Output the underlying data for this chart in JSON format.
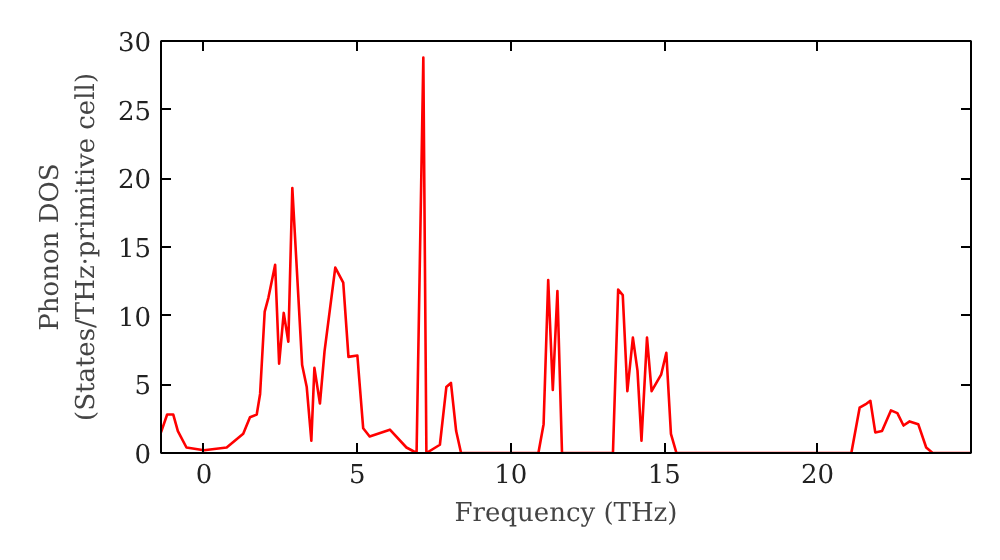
{
  "chart_data": {
    "type": "line",
    "xlabel": "Frequency (THz)",
    "ylabel": "Phonon DOS\n(States/THz·primitive cell)",
    "xlim": [
      -1.4,
      25
    ],
    "ylim": [
      0,
      30
    ],
    "xticks": [
      0,
      5,
      10,
      15,
      20
    ],
    "yticks": [
      0,
      5,
      10,
      15,
      20,
      25,
      30
    ],
    "grid": false,
    "series": [
      {
        "color": "#ff0000",
        "x": [
          -1.4,
          -1.2,
          -1.0,
          -0.85,
          -0.57,
          0,
          0.74,
          1.28,
          1.5,
          1.72,
          1.83,
          1.98,
          2.1,
          2.32,
          2.45,
          2.6,
          2.75,
          2.88,
          3.2,
          3.35,
          3.5,
          3.6,
          3.78,
          3.93,
          4.28,
          4.54,
          4.71,
          5.0,
          5.19,
          5.4,
          6.06,
          6.6,
          6.93,
          7.15,
          7.25,
          7.69,
          7.9,
          8.05,
          8.22,
          8.38,
          10.9,
          11.07,
          11.22,
          11.37,
          11.52,
          11.67,
          13.33,
          13.5,
          13.65,
          13.8,
          13.98,
          14.13,
          14.26,
          14.44,
          14.59,
          14.9,
          15.07,
          15.22,
          15.4,
          21.1,
          21.37,
          21.6,
          21.72,
          21.88,
          22.1,
          22.39,
          22.6,
          22.8,
          23.0,
          23.28,
          23.54,
          23.75,
          25
        ],
        "values": [
          1.5,
          2.8,
          2.8,
          1.6,
          0.4,
          0.2,
          0.4,
          1.4,
          2.6,
          2.8,
          4.3,
          10.3,
          11.3,
          13.7,
          6.5,
          10.2,
          8.1,
          19.3,
          6.4,
          4.8,
          0.9,
          6.2,
          3.6,
          7.4,
          13.5,
          12.4,
          7.0,
          7.1,
          1.8,
          1.2,
          1.7,
          0.4,
          0,
          28.8,
          0,
          0.6,
          4.8,
          5.1,
          1.6,
          0,
          0,
          2.1,
          12.6,
          4.6,
          11.8,
          0,
          0,
          11.9,
          11.5,
          4.5,
          8.4,
          6.0,
          0.9,
          8.4,
          4.5,
          5.7,
          7.3,
          1.4,
          0,
          0,
          3.3,
          3.6,
          3.8,
          1.5,
          1.6,
          3.1,
          2.9,
          2.0,
          2.3,
          2.1,
          0.4,
          0,
          0
        ]
      }
    ]
  }
}
